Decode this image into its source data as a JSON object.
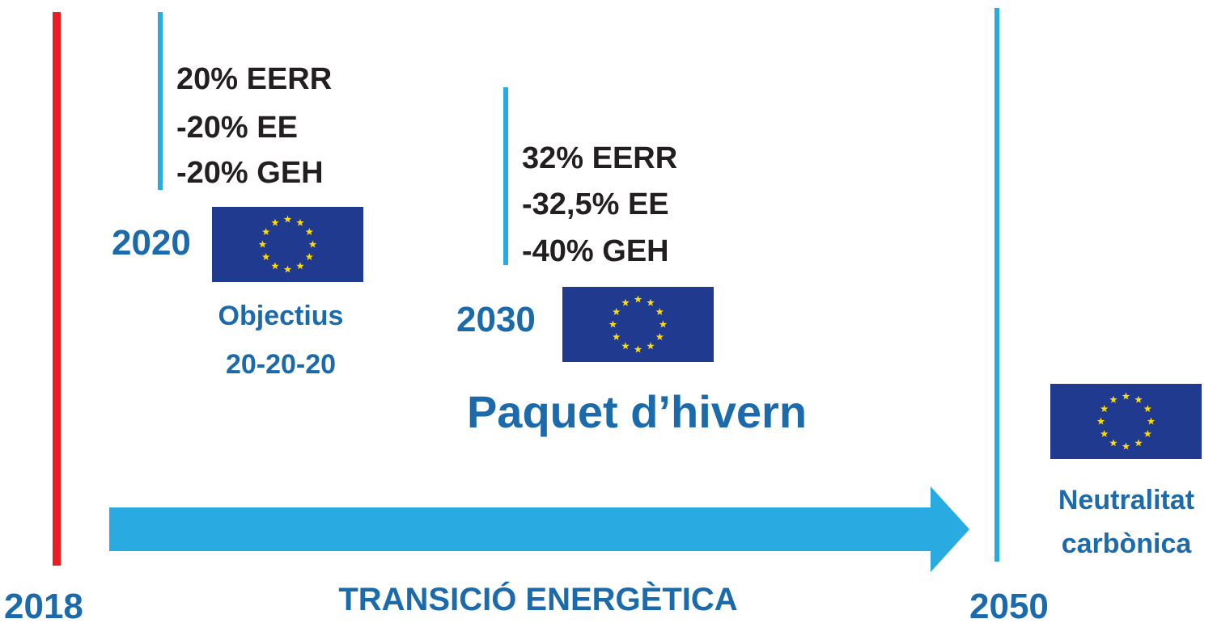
{
  "start_year": "2018",
  "end_year": "2050",
  "arrow_label": "TRANSICIÓ ENERGÈTICA",
  "milestones": [
    {
      "year": "2020",
      "targets": [
        "20% EERR",
        "-20% EE",
        "-20% GEH"
      ],
      "label": [
        "Objectius",
        "20-20-20"
      ]
    },
    {
      "year": "2030",
      "targets": [
        "32% EERR",
        "-32,5% EE",
        "-40% GEH"
      ],
      "label": [
        "Paquet d’hivern"
      ]
    },
    {
      "label": [
        "Neutralitat",
        "carbònica"
      ]
    }
  ]
}
